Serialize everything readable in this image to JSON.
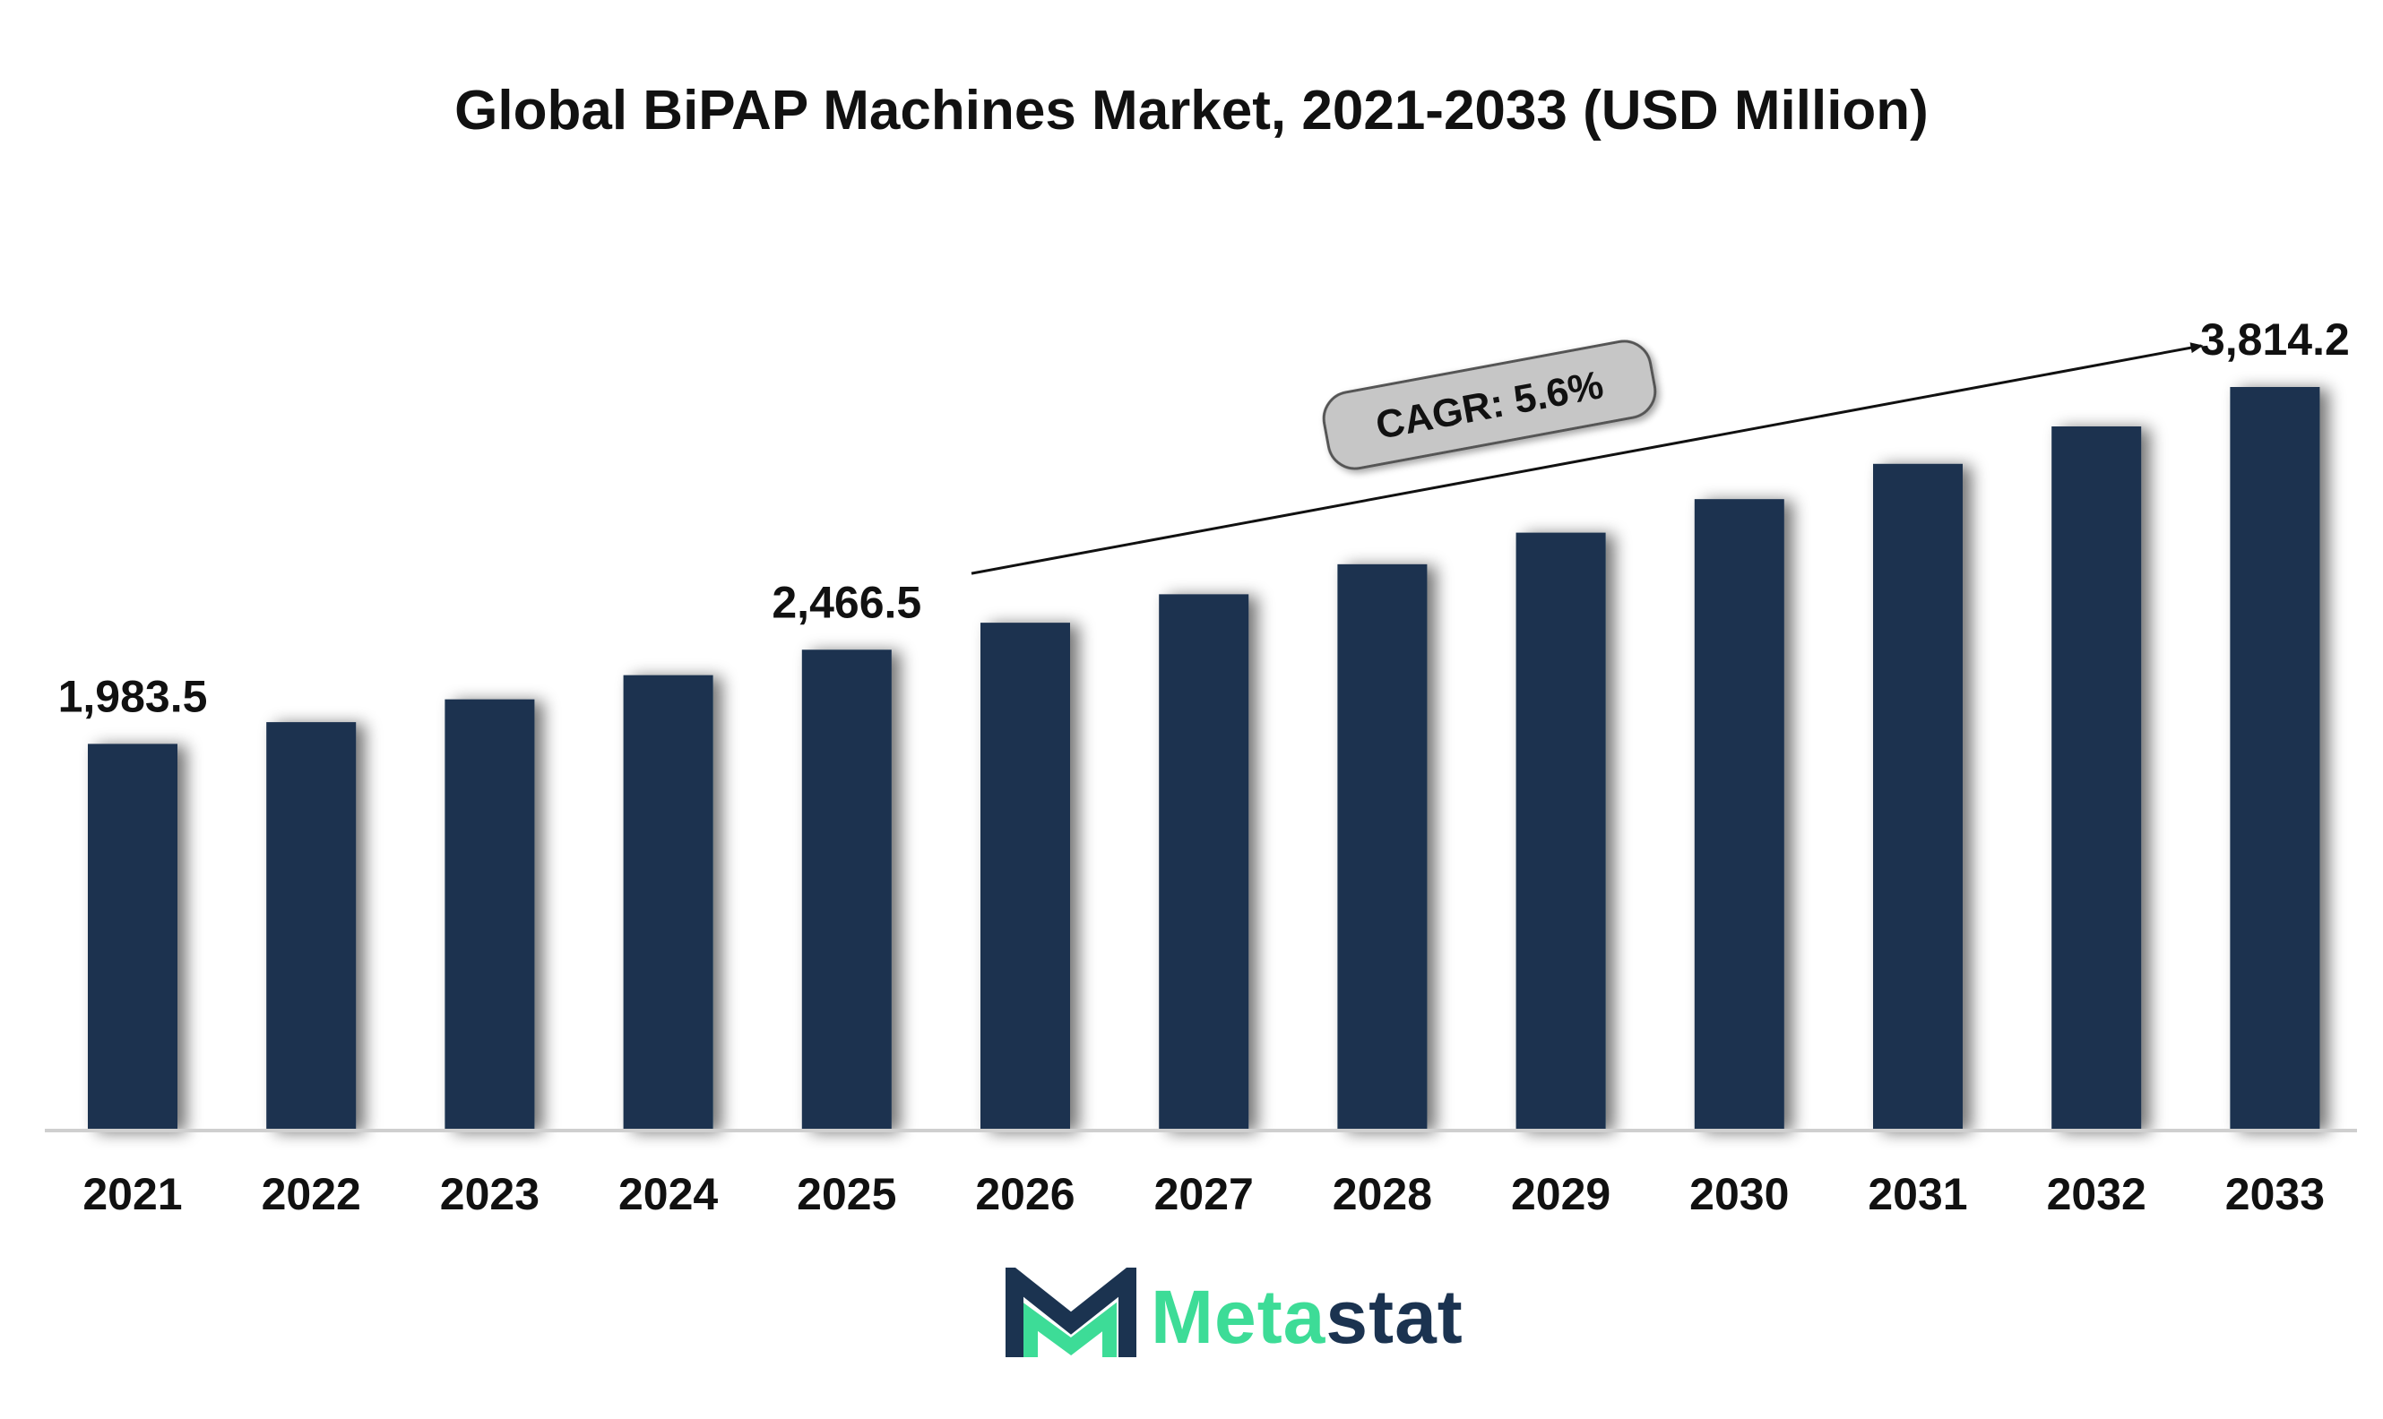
{
  "chart_data": {
    "type": "bar",
    "title": "Global BiPAP Machines Market, 2021-2033 (USD Million)",
    "categories": [
      "2021",
      "2022",
      "2023",
      "2024",
      "2025",
      "2026",
      "2027",
      "2028",
      "2029",
      "2030",
      "2031",
      "2032",
      "2033"
    ],
    "values": [
      1983.5,
      2095,
      2212,
      2336,
      2466.5,
      2605,
      2751,
      2905,
      3067,
      3239,
      3420,
      3612,
      3814.2
    ],
    "data_labels": [
      {
        "category": "2021",
        "text": "1,983.5"
      },
      {
        "category": "2025",
        "text": "2,466.5"
      },
      {
        "category": "2033",
        "text": "3,814.2"
      }
    ],
    "annotation": {
      "text": "CAGR: 5.6%",
      "from": "2026",
      "to": "2033"
    },
    "ylim": [
      0,
      4000
    ],
    "grid": false,
    "legend": "none",
    "bar_color": "#1b3350"
  },
  "brand": {
    "name_part1": "Meta",
    "name_part2": "stat",
    "color_primary": "#3ddc97",
    "color_secondary": "#1b3350"
  }
}
